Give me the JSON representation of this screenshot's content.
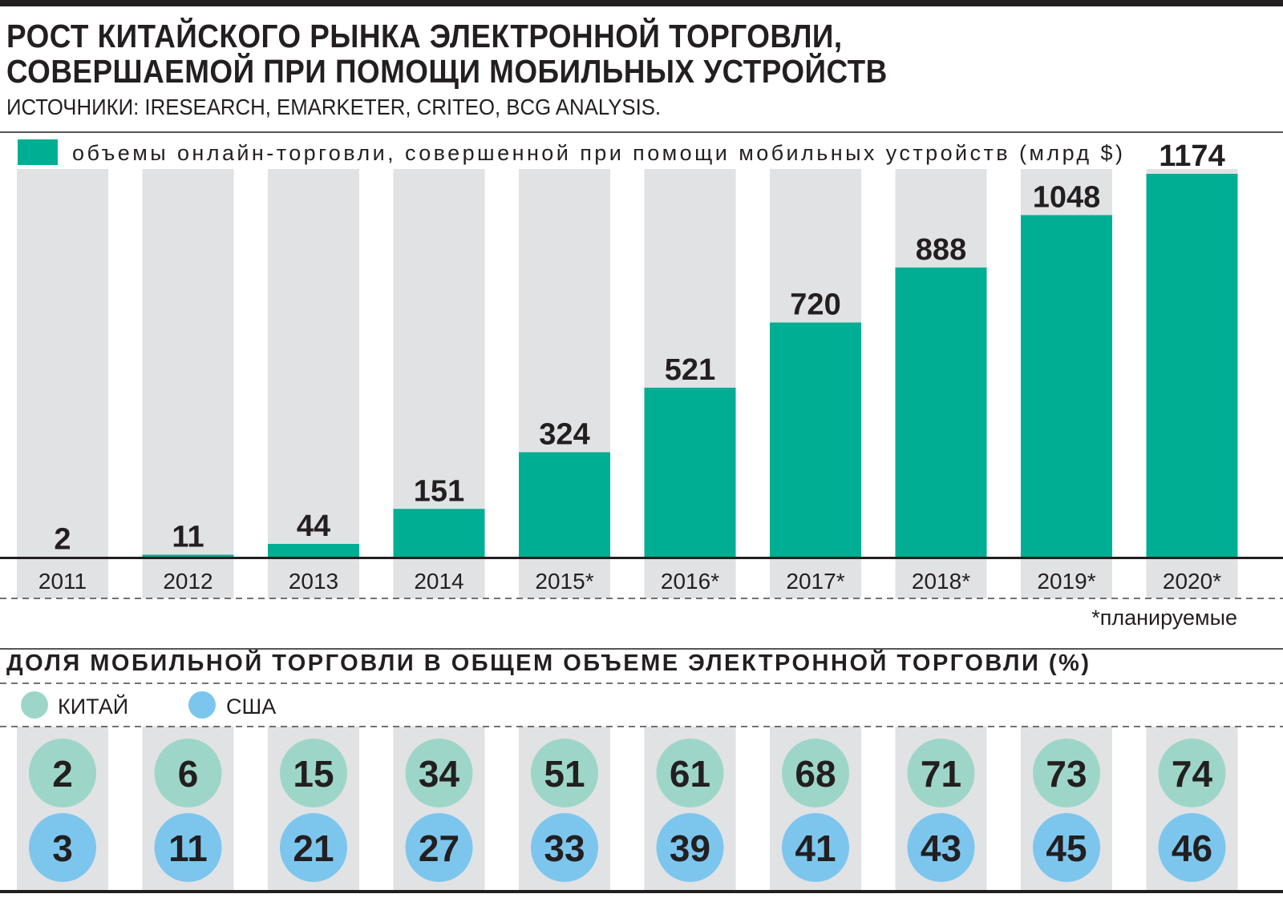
{
  "title_line1": "РОСТ КИТАЙСКОГО РЫНКА ЭЛЕКТРОННОЙ ТОРГОВЛИ,",
  "title_line2": "СОВЕРШАЕМОЙ ПРИ ПОМОЩИ МОБИЛЬНЫХ УСТРОЙСТВ",
  "sources": "ИСТОЧНИКИ:  IRESEARCH, EMARKETER, CRITEO, BCG ANALYSIS.",
  "colors": {
    "bar": "#00ae93",
    "column_bg": "#e1e2e4",
    "china": "#9dd6c8",
    "usa": "#7cc6ee",
    "text": "#231f20"
  },
  "chart_data": [
    {
      "type": "bar",
      "title": "РОСТ КИТАЙСКОГО РЫНКА ЭЛЕКТРОННОЙ ТОРГОВЛИ, СОВЕРШАЕМОЙ ПРИ ПОМОЩИ МОБИЛЬНЫХ УСТРОЙСТВ",
      "legend": "объемы онлайн-торговли, совершенной при помощи мобильных устройств (млрд $)",
      "legend_placement": "top-left",
      "categories": [
        "2011",
        "2012",
        "2013",
        "2014",
        "2015*",
        "2016*",
        "2017*",
        "2018*",
        "2019*",
        "2020*"
      ],
      "values": [
        2,
        11,
        44,
        151,
        324,
        521,
        720,
        888,
        1048,
        1174
      ],
      "ylim": [
        0,
        1174
      ],
      "footnote": "*планируемые"
    },
    {
      "type": "table",
      "title": "ДОЛЯ МОБИЛЬНОЙ ТОРГОВЛИ В ОБЩЕМ ОБЪЕМЕ ЭЛЕКТРОННОЙ ТОРГОВЛИ (%)",
      "categories": [
        "2011",
        "2012",
        "2013",
        "2014",
        "2015*",
        "2016*",
        "2017*",
        "2018*",
        "2019*",
        "2020*"
      ],
      "series": [
        {
          "name": "КИТАЙ",
          "values": [
            2,
            6,
            15,
            34,
            51,
            61,
            68,
            71,
            73,
            74
          ]
        },
        {
          "name": "США",
          "values": [
            3,
            11,
            21,
            27,
            33,
            39,
            41,
            43,
            45,
            46
          ]
        }
      ]
    }
  ]
}
